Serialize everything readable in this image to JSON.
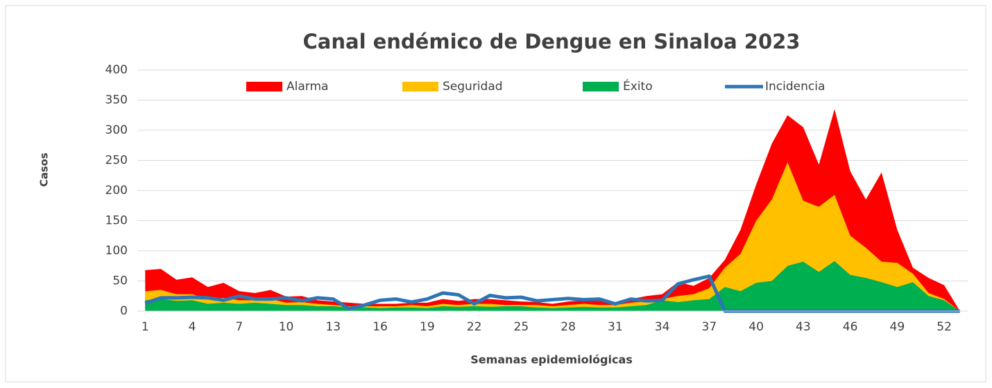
{
  "chart_data": {
    "type": "area",
    "title": "Canal endémico de Dengue en Sinaloa 2023",
    "xlabel": "Semanas epidemiológicas",
    "ylabel": "Casos",
    "x": [
      1,
      2,
      3,
      4,
      5,
      6,
      7,
      8,
      9,
      10,
      11,
      12,
      13,
      14,
      15,
      16,
      17,
      18,
      19,
      20,
      21,
      22,
      23,
      24,
      25,
      26,
      27,
      28,
      29,
      30,
      31,
      32,
      33,
      34,
      35,
      36,
      37,
      38,
      39,
      40,
      41,
      42,
      43,
      44,
      45,
      46,
      47,
      48,
      49,
      50,
      51,
      52,
      53
    ],
    "xlim": [
      0.5,
      53.5
    ],
    "xticks": [
      1,
      4,
      7,
      10,
      13,
      16,
      19,
      22,
      25,
      28,
      31,
      34,
      37,
      40,
      43,
      46,
      49,
      52
    ],
    "ylim": [
      0,
      400
    ],
    "yticks": [
      0,
      50,
      100,
      150,
      200,
      250,
      300,
      350,
      400
    ],
    "grid": true,
    "legend": "top",
    "series": [
      {
        "name": "Alarma",
        "type": "area",
        "color": "#ff0000",
        "values": [
          68,
          70,
          52,
          56,
          40,
          47,
          33,
          30,
          35,
          24,
          25,
          18,
          16,
          14,
          12,
          12,
          12,
          14,
          14,
          20,
          17,
          20,
          20,
          18,
          16,
          15,
          12,
          16,
          18,
          17,
          14,
          20,
          25,
          28,
          48,
          42,
          55,
          85,
          135,
          210,
          278,
          325,
          305,
          243,
          335,
          232,
          185,
          230,
          135,
          72,
          55,
          43,
          0
        ]
      },
      {
        "name": "Seguridad",
        "type": "area",
        "color": "#ffc000",
        "values": [
          33,
          35,
          28,
          28,
          20,
          22,
          18,
          18,
          20,
          14,
          15,
          12,
          10,
          8,
          8,
          8,
          8,
          10,
          8,
          12,
          10,
          12,
          12,
          10,
          10,
          10,
          8,
          10,
          12,
          10,
          10,
          14,
          16,
          20,
          25,
          28,
          38,
          72,
          95,
          150,
          185,
          247,
          183,
          173,
          193,
          125,
          105,
          82,
          80,
          62,
          30,
          20,
          0
        ]
      },
      {
        "name": "Éxito",
        "type": "area",
        "color": "#00b050",
        "values": [
          18,
          20,
          17,
          18,
          12,
          14,
          12,
          14,
          12,
          10,
          10,
          8,
          8,
          6,
          6,
          5,
          6,
          6,
          5,
          8,
          7,
          8,
          7,
          8,
          8,
          6,
          5,
          6,
          7,
          6,
          6,
          8,
          10,
          18,
          15,
          18,
          20,
          40,
          33,
          47,
          50,
          75,
          82,
          65,
          83,
          60,
          55,
          48,
          40,
          48,
          25,
          18,
          0
        ]
      },
      {
        "name": "Incidencia",
        "type": "line",
        "color": "#2e75b6",
        "values": [
          13,
          22,
          22,
          23,
          22,
          18,
          25,
          20,
          20,
          22,
          17,
          22,
          20,
          4,
          10,
          18,
          20,
          15,
          20,
          30,
          27,
          12,
          26,
          22,
          23,
          17,
          19,
          21,
          19,
          20,
          12,
          20,
          17,
          18,
          45,
          52,
          58,
          0,
          0,
          0,
          0,
          0,
          0,
          0,
          0,
          0,
          0,
          0,
          0,
          0,
          0,
          0,
          0
        ]
      }
    ]
  }
}
